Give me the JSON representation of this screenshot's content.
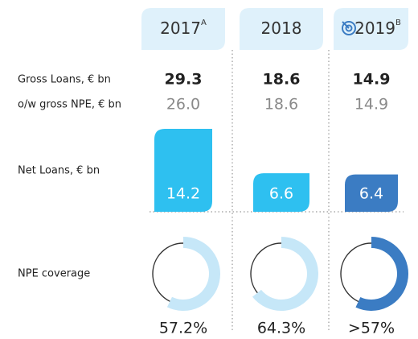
{
  "columns": [
    {
      "year": "2017",
      "note": "A"
    },
    {
      "year": "2018"
    },
    {
      "year": "2019",
      "note": "B"
    }
  ],
  "gross_loans": {
    "label": "Gross Loans, € bn",
    "values": [
      "29.3",
      "18.6",
      "14.9"
    ]
  },
  "gross_npe": {
    "label": "o/w gross NPE, € bn",
    "values": [
      "26.0",
      "18.6",
      "14.9"
    ]
  },
  "net_loans": {
    "label": "Net Loans, € bn",
    "values": [
      14.2,
      6.6,
      6.4
    ],
    "colors": [
      "#2ec0f0",
      "#2ec0f0",
      "#3b7cc3"
    ]
  },
  "npe_coverage": {
    "label": "NPE coverage",
    "values": [
      57.2,
      64.3,
      57
    ],
    "value_labels": [
      "57.2%",
      "64.3%",
      ">57%"
    ],
    "colors": [
      "#c6e7f8",
      "#c6e7f8",
      "#3b7cc3"
    ]
  }
}
